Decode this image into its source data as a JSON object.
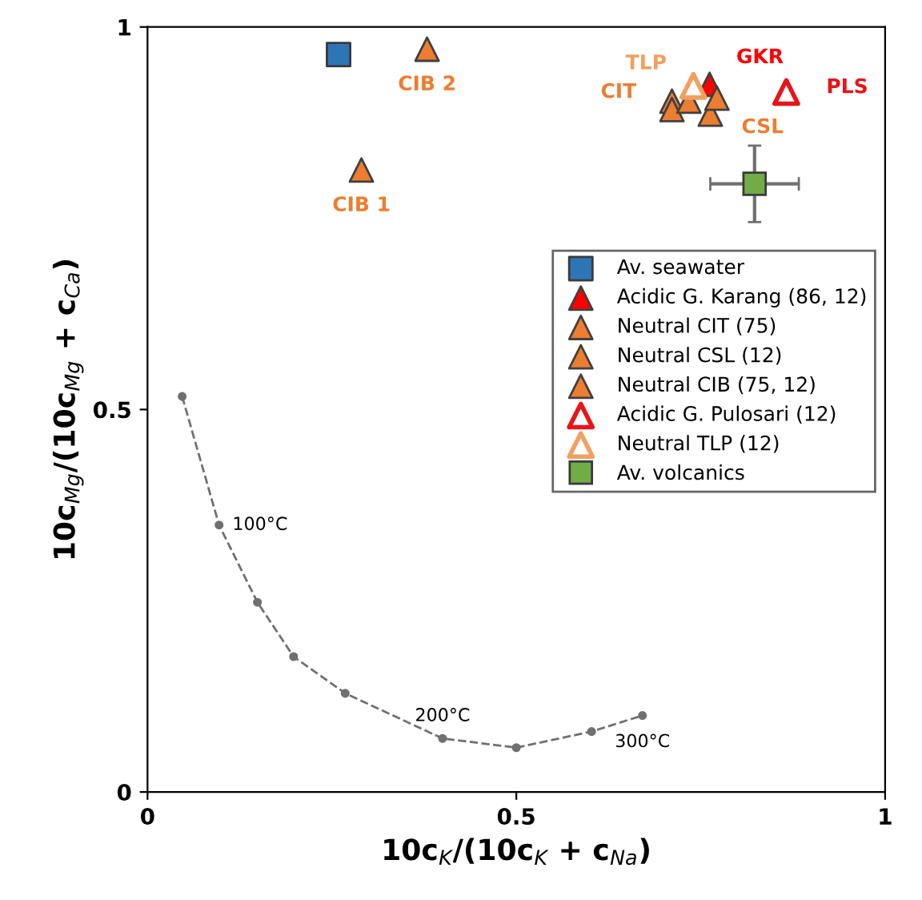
{
  "chart_data": {
    "type": "scatter",
    "xlabel": "10c$_{K}$/(10c$_{K}$ + c$_{Na}$)",
    "ylabel": "10c$_{Mg}$/(10c$_{Mg}$ + c$_{Ca}$)",
    "xlim": [
      0,
      1
    ],
    "ylim": [
      0,
      1
    ],
    "xticks": [
      0,
      0.5,
      1
    ],
    "yticks": [
      0,
      0.5,
      1
    ],
    "grid": false,
    "legend": "right",
    "series": [
      {
        "name": "Av. seawater",
        "color": "#2e75b6",
        "marker": "square",
        "x": [
          0.259
        ],
        "values": [
          0.964
        ]
      },
      {
        "name": "Acidic G. Karang (86, 12)",
        "color": "#ff0000",
        "marker": "triangle",
        "x": [
          0.762
        ],
        "values": [
          0.925
        ]
      },
      {
        "name": "Neutral CIT (75)",
        "color": "#ed7d31",
        "marker": "triangle",
        "x": [
          0.711,
          0.711,
          0.734
        ],
        "values": [
          0.903,
          0.892,
          0.903
        ]
      },
      {
        "name": "Neutral CSL (12)",
        "color": "#ed7d31",
        "marker": "triangle",
        "x": [
          0.763,
          0.772
        ],
        "values": [
          0.886,
          0.907
        ]
      },
      {
        "name": "Neutral CIB (75, 12)",
        "color": "#ed7d31",
        "marker": "triangle",
        "x": [
          0.29,
          0.379
        ],
        "values": [
          0.813,
          0.971
        ]
      },
      {
        "name": "Acidic G. Pulosari (12)",
        "color": "#e8141b",
        "marker": "triangle",
        "colors": [
          "#ffffff"
        ],
        "x": [
          0.866
        ],
        "values": [
          0.915
        ]
      },
      {
        "name": "Neutral TLP (12)",
        "color": "#f0a060",
        "marker": "triangle",
        "colors": [
          "#ffffff"
        ],
        "x": [
          0.74
        ],
        "values": [
          0.923
        ]
      },
      {
        "name": "Av. volcanics",
        "color": "#70ad47",
        "marker": "square",
        "x": [
          0.823
        ],
        "values": [
          0.795
        ],
        "errors": [
          0.05
        ],
        "xerrors": [
          0.06
        ]
      },
      {
        "type": "line",
        "color": "#707070",
        "marker": "circle",
        "line_style": "dashed",
        "x": [
          0.047,
          0.097,
          0.149,
          0.198,
          0.268,
          0.4,
          0.5,
          0.602,
          0.671
        ],
        "values": [
          0.517,
          0.349,
          0.248,
          0.177,
          0.129,
          0.07,
          0.058,
          0.079,
          0.1
        ]
      }
    ],
    "annotations": [
      {
        "text": "CIB 1",
        "x": 0.29,
        "y": 0.813
      },
      {
        "text": "CIB 2",
        "x": 0.379,
        "y": 0.971
      },
      {
        "text": "TLP",
        "x": 0.74,
        "y": 0.923
      },
      {
        "text": "GKR",
        "x": 0.762,
        "y": 0.925
      },
      {
        "text": "CIT",
        "x": 0.711,
        "y": 0.903
      },
      {
        "text": "CSL",
        "x": 0.763,
        "y": 0.886
      },
      {
        "text": "PLS",
        "x": 0.866,
        "y": 0.915
      },
      {
        "text": "100°C",
        "x": 0.097,
        "y": 0.349
      },
      {
        "text": "200°C",
        "x": 0.4,
        "y": 0.07
      },
      {
        "text": "300°C",
        "x": 0.671,
        "y": 0.1
      }
    ]
  }
}
